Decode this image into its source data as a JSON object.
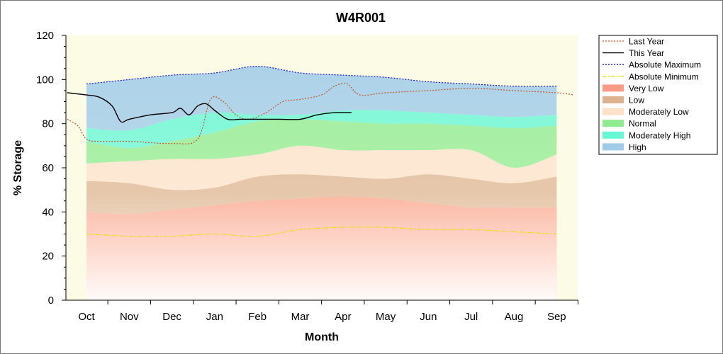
{
  "chart_data": {
    "type": "area",
    "title": "W4R001",
    "xlabel": "Month",
    "ylabel": "% Storage",
    "ylim": [
      0,
      120
    ],
    "yticks": [
      0,
      20,
      40,
      60,
      80,
      100,
      120
    ],
    "months": [
      "Oct",
      "Nov",
      "Dec",
      "Jan",
      "Feb",
      "Mar",
      "Apr",
      "May",
      "Jun",
      "Jul",
      "Aug",
      "Sep"
    ],
    "legend_position": "right",
    "bands_x": [
      0,
      1,
      2,
      3,
      4,
      5,
      6,
      7,
      8,
      9,
      10,
      11
    ],
    "bands": [
      {
        "name": "Very Low",
        "color": "#fa9c84",
        "upper": [
          40,
          39,
          41,
          43,
          45,
          46,
          47,
          46,
          44,
          42,
          42,
          42
        ]
      },
      {
        "name": "Low",
        "color": "#ddb38f",
        "upper": [
          54,
          53,
          50,
          51,
          56,
          57,
          56,
          55,
          57,
          55,
          53,
          56
        ]
      },
      {
        "name": "Moderately Low",
        "color": "#fde1c9",
        "upper": [
          62,
          63,
          64,
          64,
          66,
          70,
          68,
          68,
          68,
          68,
          60,
          66
        ]
      },
      {
        "name": "Normal",
        "color": "#8feb8f",
        "upper": [
          72,
          69,
          72,
          76,
          81,
          82,
          81,
          80,
          80,
          79,
          78,
          79
        ]
      },
      {
        "name": "Moderately High",
        "color": "#66f7d4",
        "upper": [
          78,
          77,
          82,
          85,
          84,
          84,
          86,
          86,
          85,
          84,
          83,
          84
        ]
      },
      {
        "name": "High",
        "color": "#9fcae8",
        "upper": [
          98,
          100,
          102,
          103,
          106,
          103,
          102,
          101,
          99,
          98,
          97,
          97
        ]
      }
    ],
    "series": [
      {
        "name": "Last Year",
        "color": "#c0582a",
        "style": "dotted",
        "x": [
          -0.45,
          -0.2,
          0,
          0.3,
          1,
          2,
          2.6,
          2.9,
          3.2,
          3.5,
          3.8,
          4.2,
          4.6,
          5,
          5.5,
          5.8,
          6.1,
          6.4,
          7,
          8,
          9,
          10,
          11,
          11.4
        ],
        "y": [
          82,
          79,
          73,
          72,
          72,
          71,
          73,
          91,
          90,
          84,
          82,
          85,
          90,
          91,
          93,
          97,
          98,
          93,
          94,
          95,
          96,
          95,
          94,
          93
        ]
      },
      {
        "name": "This Year",
        "color": "#000000",
        "style": "solid",
        "x": [
          -0.45,
          0,
          0.3,
          0.6,
          0.8,
          1,
          1.5,
          2,
          2.2,
          2.4,
          2.6,
          2.8,
          3,
          3.3,
          3.6,
          4,
          4.5,
          5,
          5.4,
          5.8,
          6.2
        ],
        "y": [
          94,
          93,
          92,
          88,
          81,
          82,
          84,
          85,
          87,
          84,
          88,
          89,
          86,
          82,
          82,
          82,
          82,
          82,
          84,
          85,
          85
        ]
      },
      {
        "name": "Absolute Maximum",
        "color": "#1c1ccf",
        "style": "dotted",
        "x": [
          0,
          1,
          2,
          3,
          4,
          5,
          6,
          7,
          8,
          9,
          10,
          11
        ],
        "y": [
          98,
          100,
          102,
          103,
          106,
          103,
          102,
          101,
          99,
          98,
          97,
          97
        ]
      },
      {
        "name": "Absolute Minimum",
        "color": "#e8e010",
        "style": "dashdot",
        "x": [
          0,
          1,
          2,
          3,
          4,
          5,
          6,
          7,
          8,
          9,
          10,
          11
        ],
        "y": [
          30,
          29,
          29,
          30,
          29,
          32,
          33,
          33,
          32,
          32,
          31,
          30
        ]
      }
    ],
    "legend": [
      {
        "label": "Last Year",
        "kind": "line",
        "color": "#c0582a",
        "style": "dotted"
      },
      {
        "label": "This Year",
        "kind": "line",
        "color": "#000000",
        "style": "solid"
      },
      {
        "label": "Absolute Maximum",
        "kind": "line",
        "color": "#1c1ccf",
        "style": "dotted"
      },
      {
        "label": "Absolute Minimum",
        "kind": "line",
        "color": "#e8e010",
        "style": "dashdot"
      },
      {
        "label": "Very Low",
        "kind": "box",
        "color": "#fa9c84"
      },
      {
        "label": "Low",
        "kind": "box",
        "color": "#ddb38f"
      },
      {
        "label": "Moderately Low",
        "kind": "box",
        "color": "#fde1c9"
      },
      {
        "label": "Normal",
        "kind": "box",
        "color": "#8feb8f"
      },
      {
        "label": "Moderately High",
        "kind": "box",
        "color": "#66f7d4"
      },
      {
        "label": "High",
        "kind": "box",
        "color": "#9fcae8"
      }
    ],
    "plot_background": "#fbfbe6"
  }
}
